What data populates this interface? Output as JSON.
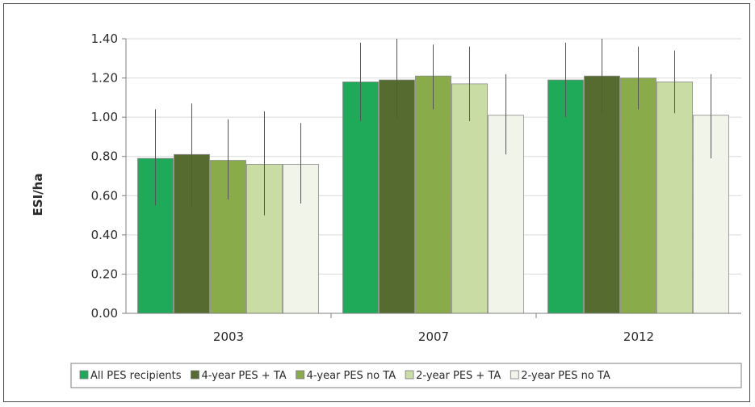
{
  "chart_data": {
    "type": "bar",
    "ylabel": "ESI/ha",
    "xlabel": "",
    "ylim": [
      0,
      1.4
    ],
    "yticks": [
      "0.00",
      "0.20",
      "0.40",
      "0.60",
      "0.80",
      "1.00",
      "1.20",
      "1.40"
    ],
    "ytick_values": [
      0,
      0.2,
      0.4,
      0.6,
      0.8,
      1.0,
      1.2,
      1.4
    ],
    "grid": true,
    "legend_position": "bottom",
    "categories": [
      "2003",
      "2007",
      "2012"
    ],
    "series": [
      {
        "name": "All PES recipients",
        "color": "#1faa5a",
        "values": [
          0.79,
          1.18,
          1.19
        ],
        "err_low": [
          0.55,
          0.98,
          1.0
        ],
        "err_high": [
          1.04,
          1.38,
          1.38
        ]
      },
      {
        "name": "4-year PES + TA",
        "color": "#556b2f",
        "values": [
          0.81,
          1.19,
          1.21
        ],
        "err_low": [
          0.54,
          0.99,
          1.02
        ],
        "err_high": [
          1.07,
          1.4,
          1.4
        ]
      },
      {
        "name": "4-year PES no TA",
        "color": "#8aab4a",
        "values": [
          0.78,
          1.21,
          1.2
        ],
        "err_low": [
          0.58,
          1.04,
          1.04
        ],
        "err_high": [
          0.99,
          1.37,
          1.36
        ]
      },
      {
        "name": "2-year PES + TA",
        "color": "#c9dca3",
        "values": [
          0.76,
          1.17,
          1.18
        ],
        "err_low": [
          0.5,
          0.98,
          1.02
        ],
        "err_high": [
          1.03,
          1.36,
          1.34
        ]
      },
      {
        "name": "2-year PES no TA",
        "color": "#f1f4e8",
        "values": [
          0.76,
          1.01,
          1.01
        ],
        "err_low": [
          0.56,
          0.81,
          0.79
        ],
        "err_high": [
          0.97,
          1.22,
          1.22
        ]
      }
    ]
  }
}
